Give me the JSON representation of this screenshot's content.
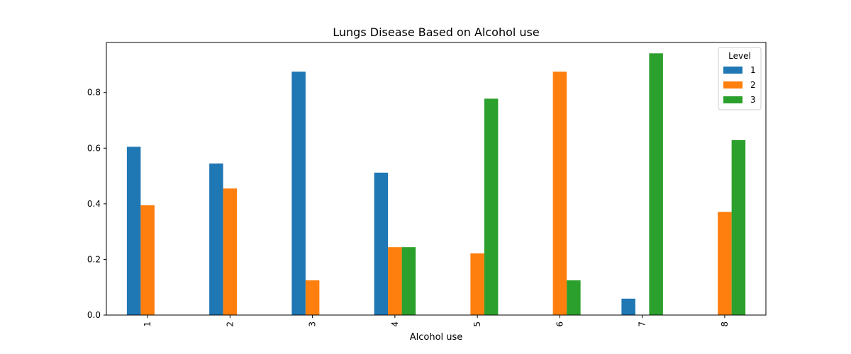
{
  "chart_data": {
    "type": "bar",
    "title": "Lungs Disease Based on Alcohol use",
    "xlabel": "Alcohol use",
    "ylabel": "",
    "categories": [
      "1",
      "2",
      "3",
      "4",
      "5",
      "6",
      "7",
      "8"
    ],
    "ylim": [
      0,
      0.98
    ],
    "yticks": [
      0.0,
      0.2,
      0.4,
      0.6,
      0.8
    ],
    "ytick_labels": [
      "0.0",
      "0.2",
      "0.4",
      "0.6",
      "0.8"
    ],
    "grid": false,
    "legend": {
      "title": "Level",
      "placement": "top-right"
    },
    "series": [
      {
        "name": "1",
        "color": "#1f77b4",
        "values": [
          0.605,
          0.545,
          0.875,
          0.512,
          0.0,
          0.0,
          0.059,
          0.0
        ]
      },
      {
        "name": "2",
        "color": "#ff7f0e",
        "values": [
          0.395,
          0.455,
          0.125,
          0.244,
          0.222,
          0.875,
          0.0,
          0.371
        ]
      },
      {
        "name": "3",
        "color": "#2ca02c",
        "values": [
          0.0,
          0.0,
          0.0,
          0.244,
          0.778,
          0.125,
          0.941,
          0.629
        ]
      }
    ]
  }
}
